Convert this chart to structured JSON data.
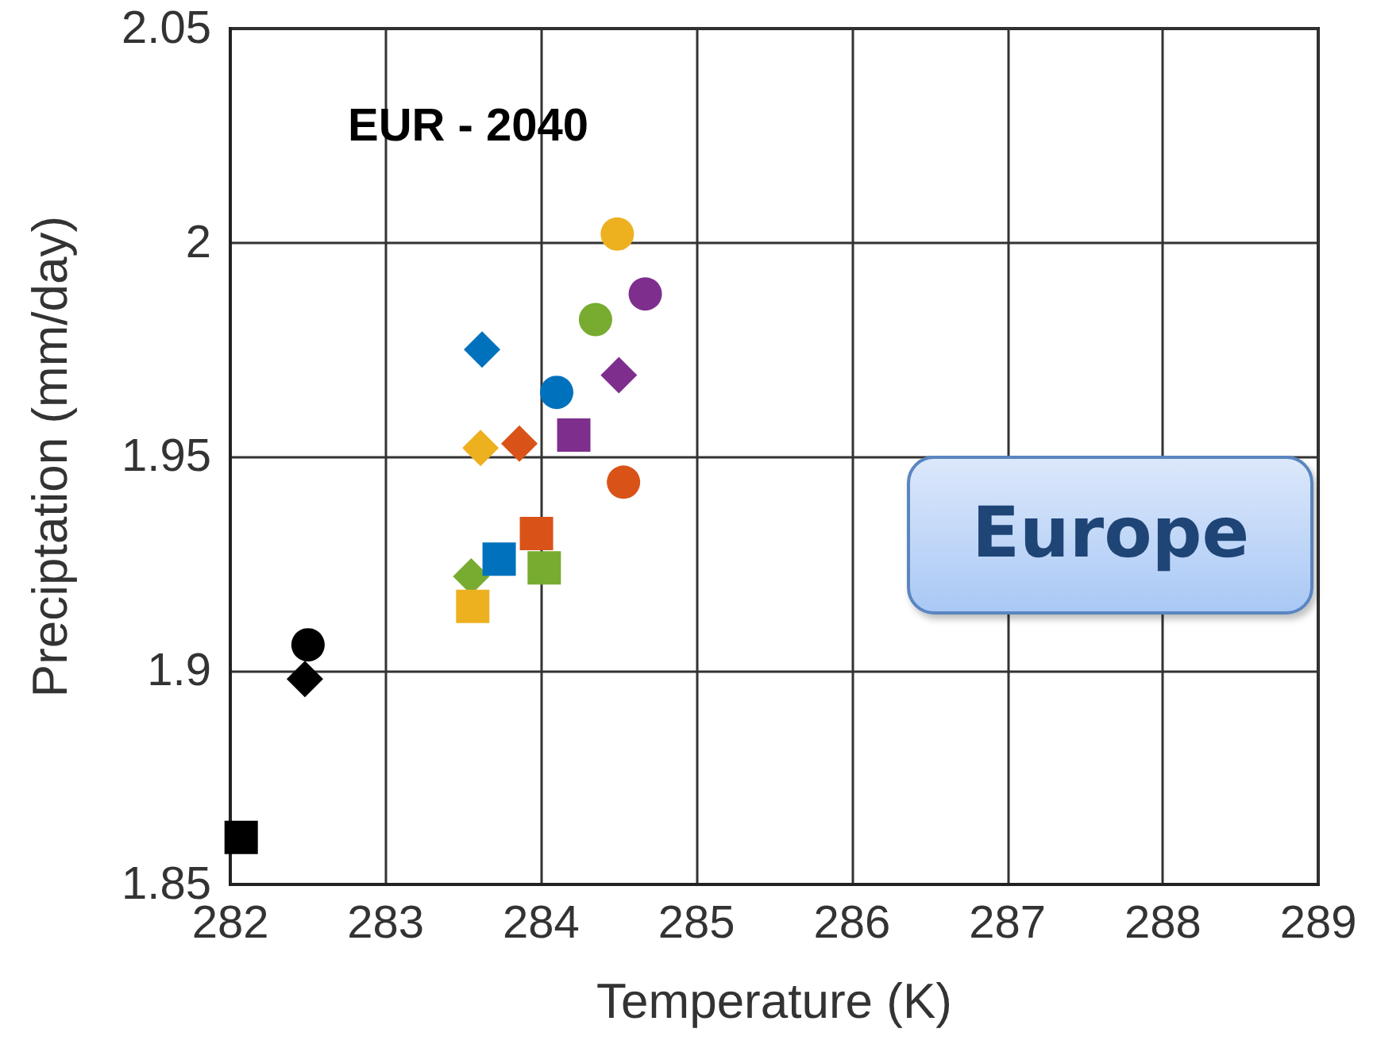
{
  "chart_data": {
    "type": "scatter",
    "title": "EUR - 2040",
    "xlabel": "Temperature (K)",
    "ylabel": "Preciptation (mm/day)",
    "annotations": [
      "Europe"
    ],
    "series": [
      {
        "marker": "circle",
        "x": [
          282.5,
          284.1,
          284.53,
          284.49,
          284.67,
          284.35
        ],
        "values": [
          1.906,
          1.965,
          1.944,
          2.002,
          1.988,
          1.982
        ],
        "colors": [
          "#000000",
          "#0072bd",
          "#d95319",
          "#edb120",
          "#7e2f8e",
          "#77ac30"
        ]
      },
      {
        "marker": "diamond",
        "x": [
          282.48,
          283.62,
          283.86,
          283.61,
          284.5,
          283.55
        ],
        "values": [
          1.898,
          1.975,
          1.953,
          1.952,
          1.969,
          1.922
        ],
        "colors": [
          "#000000",
          "#0072bd",
          "#d95319",
          "#edb120",
          "#7e2f8e",
          "#77ac30"
        ]
      },
      {
        "marker": "square",
        "x": [
          282.07,
          283.73,
          283.97,
          283.56,
          284.21,
          284.02
        ],
        "values": [
          1.861,
          1.926,
          1.932,
          1.915,
          1.955,
          1.924
        ],
        "colors": [
          "#000000",
          "#0072bd",
          "#d95319",
          "#edb120",
          "#7e2f8e",
          "#77ac30"
        ]
      }
    ],
    "xlim": [
      282,
      289
    ],
    "xticks": [
      282,
      283,
      284,
      285,
      286,
      287,
      288,
      289
    ],
    "ylim": [
      1.85,
      2.05
    ],
    "yticks": [
      1.85,
      1.9,
      1.95,
      2,
      2.05
    ],
    "grid": true
  }
}
